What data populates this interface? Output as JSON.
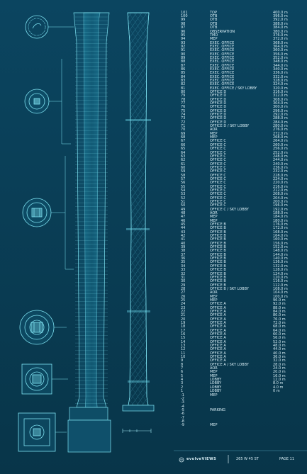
{
  "footer": {
    "brand": "evolveVIEWS",
    "address": "265 W 45 ST",
    "page": "PAGE 11"
  },
  "floors": [
    {
      "num": "101",
      "use": "TOP",
      "height": "400.0 m"
    },
    {
      "num": "100",
      "use": "OTB",
      "height": "396.0 m"
    },
    {
      "num": "99",
      "use": "OTB",
      "height": "392.0 m"
    },
    {
      "num": "98",
      "use": "OTB",
      "height": "388.0 m"
    },
    {
      "num": "97",
      "use": "OTB",
      "height": "384.0 m"
    },
    {
      "num": "96",
      "use": "OBSERVATION",
      "height": "380.0 m"
    },
    {
      "num": "95",
      "use": "TMD",
      "height": "376.0 m"
    },
    {
      "num": "94",
      "use": "MEP",
      "height": "372.0 m"
    },
    {
      "num": "93",
      "use": "EXEC. OFFICE",
      "height": "368.0 m"
    },
    {
      "num": "92",
      "use": "EXEC. OFFICE",
      "height": "364.0 m"
    },
    {
      "num": "91",
      "use": "EXEC. OFFICE",
      "height": "360.0 m"
    },
    {
      "num": "90",
      "use": "EXEC. OFFICE",
      "height": "356.0 m"
    },
    {
      "num": "89",
      "use": "EXEC. OFFICE",
      "height": "352.0 m"
    },
    {
      "num": "88",
      "use": "EXEC. OFFICE",
      "height": "348.0 m"
    },
    {
      "num": "87",
      "use": "EXEC. OFFICE",
      "height": "344.0 m"
    },
    {
      "num": "86",
      "use": "EXEC. OFFICE",
      "height": "340.0 m"
    },
    {
      "num": "85",
      "use": "EXEC. OFFICE",
      "height": "336.0 m"
    },
    {
      "num": "84",
      "use": "EXEC. OFFICE",
      "height": "332.0 m"
    },
    {
      "num": "83",
      "use": "EXEC. OFFICE",
      "height": "328.0 m"
    },
    {
      "num": "82",
      "use": "EXEC. OFFICE",
      "height": "324.0 m"
    },
    {
      "num": "81",
      "use": "EXEC. OFFICE / SKY LOBBY",
      "height": "320.0 m"
    },
    {
      "num": "80",
      "use": "OFFICE D",
      "height": "316.0 m"
    },
    {
      "num": "79",
      "use": "OFFICE D",
      "height": "312.0 m"
    },
    {
      "num": "78",
      "use": "OFFICE D",
      "height": "308.0 m"
    },
    {
      "num": "77",
      "use": "OFFICE D",
      "height": "304.0 m"
    },
    {
      "num": "76",
      "use": "OFFICE D",
      "height": "300.0 m"
    },
    {
      "num": "75",
      "use": "OFFICE D",
      "height": "296.0 m"
    },
    {
      "num": "74",
      "use": "OFFICE D",
      "height": "292.0 m"
    },
    {
      "num": "73",
      "use": "OFFICE D",
      "height": "288.0 m"
    },
    {
      "num": "72",
      "use": "OFFICE D",
      "height": "284.0 m"
    },
    {
      "num": "71",
      "use": "OFFICE D / SKY LOBBY",
      "height": "280.0 m"
    },
    {
      "num": "70",
      "use": "AOR",
      "height": "276.0 m"
    },
    {
      "num": "69",
      "use": "MEP",
      "height": "272.0 m"
    },
    {
      "num": "68",
      "use": "MEP",
      "height": "268.0 m"
    },
    {
      "num": "67",
      "use": "OFFICE C",
      "height": "264.0 m"
    },
    {
      "num": "66",
      "use": "OFFICE C",
      "height": "260.0 m"
    },
    {
      "num": "65",
      "use": "OFFICE C",
      "height": "256.0 m"
    },
    {
      "num": "64",
      "use": "OFFICE C",
      "height": "252.0 m"
    },
    {
      "num": "63",
      "use": "OFFICE C",
      "height": "248.0 m"
    },
    {
      "num": "62",
      "use": "OFFICE C",
      "height": "244.0 m"
    },
    {
      "num": "61",
      "use": "OFFICE C",
      "height": "240.0 m"
    },
    {
      "num": "60",
      "use": "OFFICE C",
      "height": "236.0 m"
    },
    {
      "num": "59",
      "use": "OFFICE C",
      "height": "232.0 m"
    },
    {
      "num": "58",
      "use": "OFFICE C",
      "height": "228.0 m"
    },
    {
      "num": "57",
      "use": "OFFICE C",
      "height": "224.0 m"
    },
    {
      "num": "56",
      "use": "OFFICE C",
      "height": "220.0 m"
    },
    {
      "num": "55",
      "use": "OFFICE C",
      "height": "216.0 m"
    },
    {
      "num": "54",
      "use": "OFFICE C",
      "height": "212.0 m"
    },
    {
      "num": "53",
      "use": "OFFICE C",
      "height": "208.0 m"
    },
    {
      "num": "52",
      "use": "OFFICE C",
      "height": "204.0 m"
    },
    {
      "num": "51",
      "use": "OFFICE C",
      "height": "200.0 m"
    },
    {
      "num": "50",
      "use": "OFFICE C",
      "height": "196.0 m"
    },
    {
      "num": "49",
      "use": "OFFICE C / SKY LOBBY",
      "height": "192.0 m"
    },
    {
      "num": "48",
      "use": "AOR",
      "height": "188.0 m"
    },
    {
      "num": "47",
      "use": "MEP",
      "height": "184.0 m"
    },
    {
      "num": "46",
      "use": "MEP",
      "height": "180.0 m"
    },
    {
      "num": "45",
      "use": "OFFICE B",
      "height": "176.0 m"
    },
    {
      "num": "44",
      "use": "OFFICE B",
      "height": "172.0 m"
    },
    {
      "num": "43",
      "use": "OFFICE B",
      "height": "168.0 m"
    },
    {
      "num": "42",
      "use": "OFFICE B",
      "height": "164.0 m"
    },
    {
      "num": "41",
      "use": "OFFICE B",
      "height": "160.0 m"
    },
    {
      "num": "40",
      "use": "OFFICE B",
      "height": "156.0 m"
    },
    {
      "num": "39",
      "use": "OFFICE B",
      "height": "152.0 m"
    },
    {
      "num": "38",
      "use": "OFFICE B",
      "height": "148.0 m"
    },
    {
      "num": "37",
      "use": "OFFICE B",
      "height": "144.0 m"
    },
    {
      "num": "36",
      "use": "OFFICE B",
      "height": "140.0 m"
    },
    {
      "num": "35",
      "use": "OFFICE B",
      "height": "136.0 m"
    },
    {
      "num": "34",
      "use": "OFFICE B",
      "height": "132.0 m"
    },
    {
      "num": "33",
      "use": "OFFICE B",
      "height": "128.0 m"
    },
    {
      "num": "32",
      "use": "OFFICE B",
      "height": "124.0 m"
    },
    {
      "num": "31",
      "use": "OFFICE B",
      "height": "120.0 m"
    },
    {
      "num": "30",
      "use": "OFFICE B",
      "height": "116.0 m"
    },
    {
      "num": "29",
      "use": "OFFICE B",
      "height": "112.0 m"
    },
    {
      "num": "28",
      "use": "OFFICE B / SKY LOBBY",
      "height": "108.0 m"
    },
    {
      "num": "27",
      "use": "AOR",
      "height": "104.0 m"
    },
    {
      "num": "26",
      "use": "MEP",
      "height": "100.0 m"
    },
    {
      "num": "25",
      "use": "MEP",
      "height": "96.0 m"
    },
    {
      "num": "24",
      "use": "OFFICE A",
      "height": "92.0 m"
    },
    {
      "num": "23",
      "use": "OFFICE A",
      "height": "88.0 m"
    },
    {
      "num": "22",
      "use": "OFFICE A",
      "height": "84.0 m"
    },
    {
      "num": "21",
      "use": "OFFICE A",
      "height": "80.0 m"
    },
    {
      "num": "20",
      "use": "OFFICE A",
      "height": "76.0 m"
    },
    {
      "num": "19",
      "use": "OFFICE A",
      "height": "72.0 m"
    },
    {
      "num": "18",
      "use": "OFFICE A",
      "height": "68.0 m"
    },
    {
      "num": "17",
      "use": "OFFICE A",
      "height": "64.0 m"
    },
    {
      "num": "16",
      "use": "OFFICE A",
      "height": "60.0 m"
    },
    {
      "num": "15",
      "use": "OFFICE A",
      "height": "56.0 m"
    },
    {
      "num": "14",
      "use": "OFFICE A",
      "height": "52.0 m"
    },
    {
      "num": "13",
      "use": "OFFICE A",
      "height": "48.0 m"
    },
    {
      "num": "12",
      "use": "OFFICE A",
      "height": "44.0 m"
    },
    {
      "num": "11",
      "use": "OFFICE A",
      "height": "40.0 m"
    },
    {
      "num": "10",
      "use": "OFFICE A",
      "height": "36.0 m"
    },
    {
      "num": "9",
      "use": "OFFICE A",
      "height": "32.0 m"
    },
    {
      "num": "8",
      "use": "OFFICE A / SKY LOBBY",
      "height": "28.0 m"
    },
    {
      "num": "7",
      "use": "AOR",
      "height": "24.0 m"
    },
    {
      "num": "6",
      "use": "MEP",
      "height": "20.0 m"
    },
    {
      "num": "5",
      "use": "MEP",
      "height": "16.0 m"
    },
    {
      "num": "4",
      "use": "LOBBY",
      "height": "12.0 m"
    },
    {
      "num": "3",
      "use": "LOBBY",
      "height": "8.0 m"
    },
    {
      "num": "2",
      "use": "LOBBY",
      "height": "4.0 m"
    },
    {
      "num": "1",
      "use": "LOBBY",
      "height": "0 m"
    },
    {
      "num": "-1",
      "use": "MEP",
      "height": ""
    },
    {
      "num": "-2",
      "use": "",
      "height": ""
    },
    {
      "num": "-3",
      "use": "",
      "height": ""
    },
    {
      "num": "-4",
      "use": "",
      "height": ""
    },
    {
      "num": "-5",
      "use": "PARKING",
      "height": ""
    },
    {
      "num": "-6",
      "use": "",
      "height": ""
    },
    {
      "num": "-7",
      "use": "",
      "height": ""
    },
    {
      "num": "-8",
      "use": "",
      "height": ""
    },
    {
      "num": "-9",
      "use": "MEP",
      "height": ""
    }
  ]
}
